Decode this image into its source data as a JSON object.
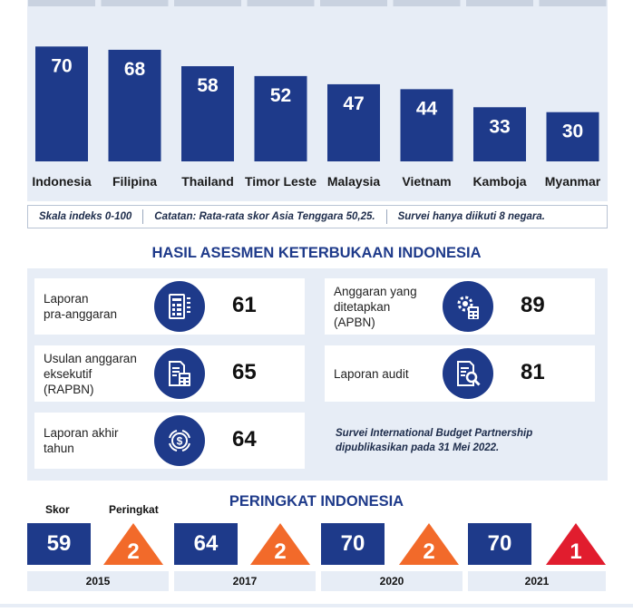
{
  "chart_data": {
    "type": "bar",
    "categories": [
      "Indonesia",
      "Filipina",
      "Thailand",
      "Timor Leste",
      "Malaysia",
      "Vietnam",
      "Kamboja",
      "Myanmar"
    ],
    "values": [
      70,
      68,
      58,
      52,
      47,
      44,
      33,
      30
    ],
    "ylim": [
      0,
      100
    ],
    "grid": false,
    "legend": "none",
    "bar_color": "#1e3a8a"
  },
  "notes": {
    "scale": "Skala indeks 0-100",
    "average": "Catatan: Rata-rata skor Asia Tenggara 50,25.",
    "survey": "Survei hanya diikuti 8 negara."
  },
  "assessment": {
    "title": "HASIL ASESMEN KETERBUKAAN INDONESIA",
    "items": [
      {
        "label": "Laporan\npra-anggaran",
        "score": "61",
        "icon": "document-list-icon"
      },
      {
        "label": "Usulan anggaran\neksekutif\n(RAPBN)",
        "score": "65",
        "icon": "document-calculator-icon"
      },
      {
        "label": "Laporan akhir\ntahun",
        "score": "64",
        "icon": "money-cycle-icon"
      },
      {
        "label": "Anggaran yang\nditetapkan\n(APBN)",
        "score": "89",
        "icon": "gear-calculator-icon"
      },
      {
        "label": "Laporan audit",
        "score": "81",
        "icon": "document-magnifier-icon"
      }
    ],
    "source_note": "Survei International Budget Partnership dipublikasikan pada 31 Mei 2022."
  },
  "ranking": {
    "title": "PERINGKAT INDONESIA",
    "score_label": "Skor",
    "rank_label": "Peringkat",
    "years": [
      {
        "year": "2015",
        "score": "59",
        "rank": "2"
      },
      {
        "year": "2017",
        "score": "64",
        "rank": "2"
      },
      {
        "year": "2020",
        "score": "70",
        "rank": "2"
      },
      {
        "year": "2021",
        "score": "70",
        "rank": "1"
      }
    ],
    "colors": {
      "score": "#1e3a8a",
      "rank_orange": "#f26a2a",
      "rank_red": "#e11d2e"
    }
  }
}
